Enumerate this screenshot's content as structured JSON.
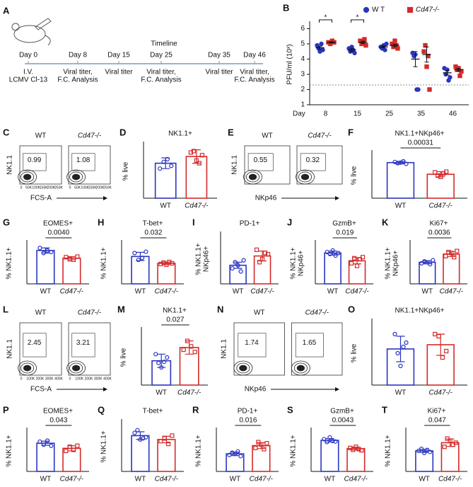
{
  "timeline": {
    "panel": "A",
    "title": "Timeline",
    "events": [
      {
        "day": "Day 0",
        "note": [
          "I.V.",
          "LCMV Cl-13"
        ]
      },
      {
        "day": "Day 8",
        "note": [
          "Viral titer,",
          "F.C. Analysis"
        ]
      },
      {
        "day": "Day 15",
        "note": [
          "Viral titer"
        ]
      },
      {
        "day": "Day 25",
        "note": [
          "Viral titer,",
          "F.C. Analysis"
        ]
      },
      {
        "day": "Day 35",
        "note": [
          "Viral titer"
        ]
      },
      {
        "day": "Day 46",
        "note": [
          "Viral titer,",
          "F.C. Analysis"
        ]
      }
    ]
  },
  "flow_plots": [
    {
      "panel": "C",
      "groups": [
        "WT",
        "Cd47-/-"
      ],
      "gates": [
        0.99,
        1.08
      ],
      "ylabel": "NK1.1",
      "xlabel": "FCS-A",
      "xticks": [
        "0",
        "50K",
        "100K",
        "150K",
        "200K",
        "250K"
      ]
    },
    {
      "panel": "E",
      "groups": [
        "WT",
        "Cd47-/-"
      ],
      "gates": [
        0.55,
        0.32
      ],
      "ylabel": "NK1.1",
      "xlabel": "NKp46"
    },
    {
      "panel": "L",
      "groups": [
        "WT",
        "Cd47-/-"
      ],
      "gates": [
        2.45,
        3.21
      ],
      "ylabel": "NK1.1",
      "xlabel": "FCS-A",
      "xticks": [
        "0",
        "100K",
        "200K",
        "300K",
        "400K"
      ]
    },
    {
      "panel": "N",
      "groups": [
        "WT",
        "Cd47-/-"
      ],
      "gates": [
        1.74,
        1.65
      ],
      "ylabel": "NK1.1",
      "xlabel": "NKp46"
    }
  ],
  "chart_data": [
    {
      "type": "dot",
      "panel": "B",
      "ylabel": "PFU/ml (10ˣ)",
      "x_prefix": "Day",
      "categories": [
        "8",
        "15",
        "25",
        "35",
        "46"
      ],
      "ylim": [
        1,
        6.3
      ],
      "yticks": [
        1,
        2,
        3,
        4,
        5,
        6
      ],
      "detection_limit": 2.3,
      "significance": [
        "*",
        "*",
        null,
        null,
        null
      ],
      "series": [
        {
          "name": "W T",
          "color": "#2a35c0",
          "values": [
            [
              4.9,
              4.7,
              4.5,
              5.0,
              4.6
            ],
            [
              4.7,
              4.5,
              4.8,
              4.6,
              4.4
            ],
            [
              4.8,
              4.7,
              4.9,
              4.6,
              5.0
            ],
            [
              4.4,
              4.2,
              4.3,
              2.0,
              2.0
            ],
            [
              3.4,
              3.0,
              3.3,
              2.6,
              2.8
            ]
          ],
          "means": [
            4.75,
            4.6,
            4.8,
            4.0,
            3.1
          ],
          "errors": [
            0.1,
            0.1,
            0.07,
            0.5,
            0.15
          ]
        },
        {
          "name": "Cd47-/-",
          "color": "#d42a2a",
          "values": [
            [
              5.1,
              5.0,
              5.2,
              5.1
            ],
            [
              5.2,
              5.0,
              5.1,
              5.3,
              4.9
            ],
            [
              5.0,
              4.8,
              5.2,
              4.9,
              4.7
            ],
            [
              4.5,
              4.9,
              3.5,
              4.2,
              2.0
            ],
            [
              3.5,
              3.3,
              3.4,
              2.9,
              3.2
            ]
          ],
          "means": [
            5.1,
            5.1,
            4.9,
            4.3,
            3.3
          ],
          "errors": [
            0.04,
            0.07,
            0.08,
            0.5,
            0.1
          ]
        }
      ]
    },
    {
      "type": "bar",
      "panel": "D",
      "title": "NK1.1+",
      "ylabel": [
        "% live"
      ],
      "categories": [
        "WT",
        "Cd47-/-"
      ],
      "colors": [
        "#2a35c0",
        "#d42a2a"
      ],
      "ylim": [
        0,
        2
      ],
      "values": [
        1.3,
        1.55
      ],
      "errors": [
        0.2,
        0.25
      ],
      "points": [
        [
          1.1,
          1.35,
          1.45,
          1.2
        ],
        [
          1.7,
          1.75,
          1.4,
          1.3,
          1.6
        ]
      ]
    },
    {
      "type": "bar",
      "panel": "F",
      "title": "NK1.1+NKp46+",
      "pvalue": "0.00031",
      "ylabel": [
        "% live"
      ],
      "categories": [
        "WT",
        "Cd47-/-"
      ],
      "colors": [
        "#2a35c0",
        "#d42a2a"
      ],
      "ylim": [
        0,
        0.7
      ],
      "values": [
        0.55,
        0.37
      ],
      "errors": [
        0.02,
        0.04
      ],
      "points": [
        [
          0.56,
          0.54,
          0.55,
          0.57,
          0.53
        ],
        [
          0.4,
          0.35,
          0.33,
          0.38,
          0.41
        ]
      ]
    },
    {
      "type": "bar",
      "panel": "G",
      "title": "EOMES+",
      "pvalue": "0.0040",
      "ylabel": [
        "% NK1.1+"
      ],
      "categories": [
        "WT",
        "Cd47-/-"
      ],
      "colors": [
        "#2a35c0",
        "#d42a2a"
      ],
      "ylim": [
        0,
        80
      ],
      "values": [
        65,
        50
      ],
      "errors": [
        5,
        3
      ],
      "points": [
        [
          70,
          60,
          65,
          62
        ],
        [
          52,
          48,
          47,
          53
        ]
      ]
    },
    {
      "type": "bar",
      "panel": "H",
      "title": "T-bet+",
      "pvalue": "0.032",
      "ylabel": [
        "% NK1.1+"
      ],
      "categories": [
        "WT",
        "Cd47-/-"
      ],
      "colors": [
        "#2a35c0",
        "#d42a2a"
      ],
      "ylim": [
        0,
        60
      ],
      "values": [
        40,
        30
      ],
      "errors": [
        6,
        2
      ],
      "points": [
        [
          45,
          35,
          38,
          47
        ],
        [
          29,
          31,
          28,
          32,
          30
        ]
      ]
    },
    {
      "type": "bar",
      "panel": "I",
      "title": "PD-1+",
      "ylabel": [
        "% NK1.1+",
        "NKp46+"
      ],
      "categories": [
        "WT",
        "Cd47-/-"
      ],
      "colors": [
        "#2a35c0",
        "#d42a2a"
      ],
      "ylim": [
        0,
        8
      ],
      "values": [
        3,
        4.5
      ],
      "errors": [
        0.5,
        0.8
      ],
      "points": [
        [
          2.5,
          3.5,
          3,
          2,
          3.8
        ],
        [
          5.5,
          3.5,
          4,
          5,
          4.8
        ]
      ]
    },
    {
      "type": "bar",
      "panel": "J",
      "title": "GzmB+",
      "pvalue": "0.019",
      "ylabel": [
        "% NK1.1+",
        "NKp46+"
      ],
      "categories": [
        "WT",
        "Cd47-/-"
      ],
      "colors": [
        "#2a35c0",
        "#d42a2a"
      ],
      "ylim": [
        0,
        80
      ],
      "values": [
        60,
        45
      ],
      "errors": [
        4,
        6
      ],
      "points": [
        [
          62,
          58,
          65,
          55,
          60
        ],
        [
          40,
          50,
          35,
          48,
          52
        ]
      ]
    },
    {
      "type": "bar",
      "panel": "K",
      "title": "Ki67+",
      "pvalue": "0.0036",
      "ylabel": [
        "% NK1.1+",
        "NKp46+"
      ],
      "categories": [
        "WT",
        "Cd47-/-"
      ],
      "colors": [
        "#2a35c0",
        "#d42a2a"
      ],
      "ylim": [
        0,
        40
      ],
      "values": [
        21,
        29
      ],
      "errors": [
        1.5,
        2.5
      ],
      "points": [
        [
          20,
          22,
          21,
          19,
          23
        ],
        [
          27,
          31,
          30,
          26,
          32
        ]
      ]
    },
    {
      "type": "bar",
      "panel": "M",
      "title": "NK1.1+",
      "pvalue": "0.027",
      "ylabel": [
        "% live"
      ],
      "categories": [
        "WT",
        "Cd47-/-"
      ],
      "colors": [
        "#2a35c0",
        "#d42a2a"
      ],
      "ylim": [
        0,
        5
      ],
      "values": [
        2.2,
        3.4
      ],
      "errors": [
        0.6,
        0.6
      ],
      "points": [
        [
          2.8,
          2.0,
          1.6,
          2.1,
          2.5
        ],
        [
          3.2,
          4.0,
          3.5,
          3.0
        ]
      ]
    },
    {
      "type": "bar",
      "panel": "O",
      "title": "NK1.1+NKp46+",
      "ylabel": [
        "% live"
      ],
      "categories": [
        "WT",
        "Cd47-/-"
      ],
      "colors": [
        "#2a35c0",
        "#d42a2a"
      ],
      "ylim": [
        0,
        3
      ],
      "values": [
        1.7,
        1.9
      ],
      "errors": [
        0.6,
        0.5
      ],
      "points": [
        [
          2.4,
          1.5,
          0.9,
          1.8,
          2.0
        ],
        [
          2.4,
          2.3,
          1.3,
          1.6
        ]
      ]
    },
    {
      "type": "bar",
      "panel": "P",
      "title": "EOMES+",
      "pvalue": "0.043",
      "ylabel": [
        "% NK1.1+"
      ],
      "categories": [
        "WT",
        "Cd47-/-"
      ],
      "colors": [
        "#2a35c0",
        "#d42a2a"
      ],
      "ylim": [
        0,
        80
      ],
      "values": [
        55,
        45
      ],
      "errors": [
        4,
        5
      ],
      "points": [
        [
          58,
          52,
          60,
          50
        ],
        [
          40,
          48,
          42,
          50
        ]
      ]
    },
    {
      "type": "bar",
      "panel": "Q",
      "title": "T-bet+",
      "ylabel": [
        "% NK1.1+"
      ],
      "categories": [
        "WT",
        "Cd47-/-"
      ],
      "colors": [
        "#2a35c0",
        "#d42a2a"
      ],
      "ylim": [
        0,
        90
      ],
      "values": [
        65,
        58
      ],
      "errors": [
        7,
        6
      ],
      "points": [
        [
          70,
          75,
          58,
          60,
          62
        ],
        [
          55,
          60,
          50,
          65
        ]
      ]
    },
    {
      "type": "bar",
      "panel": "R",
      "title": "PD-1+",
      "pvalue": "0.016",
      "ylabel": [
        "% NK1.1+"
      ],
      "categories": [
        "WT",
        "Cd47-/-"
      ],
      "colors": [
        "#2a35c0",
        "#d42a2a"
      ],
      "ylim": [
        0,
        35
      ],
      "values": [
        15,
        22
      ],
      "errors": [
        1.5,
        2.5
      ],
      "points": [
        [
          14,
          16,
          15,
          17,
          13
        ],
        [
          20,
          25,
          23,
          19,
          24
        ]
      ]
    },
    {
      "type": "bar",
      "panel": "S",
      "title": "GzmB+",
      "pvalue": "0.0043",
      "ylabel": [
        "% NK1.1+"
      ],
      "categories": [
        "WT",
        "Cd47-/-"
      ],
      "colors": [
        "#2a35c0",
        "#d42a2a"
      ],
      "ylim": [
        0,
        70
      ],
      "values": [
        53,
        39
      ],
      "errors": [
        3,
        2.5
      ],
      "points": [
        [
          55,
          50,
          58,
          52,
          51
        ],
        [
          40,
          37,
          42,
          38,
          36
        ]
      ]
    },
    {
      "type": "bar",
      "panel": "T",
      "title": "Ki67+",
      "pvalue": "0.047",
      "ylabel": [
        "% NK1.1+"
      ],
      "categories": [
        "WT",
        "Cd47-/-"
      ],
      "colors": [
        "#2a35c0",
        "#d42a2a"
      ],
      "ylim": [
        0,
        20
      ],
      "values": [
        10,
        14
      ],
      "errors": [
        0.8,
        1.8
      ],
      "points": [
        [
          10,
          11,
          9,
          10.5,
          9.5
        ],
        [
          12,
          16,
          15,
          13,
          14
        ]
      ]
    }
  ]
}
